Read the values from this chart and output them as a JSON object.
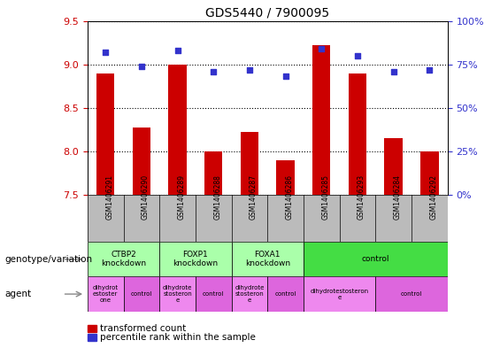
{
  "title": "GDS5440 / 7900095",
  "samples": [
    "GSM1406291",
    "GSM1406290",
    "GSM1406289",
    "GSM1406288",
    "GSM1406287",
    "GSM1406286",
    "GSM1406285",
    "GSM1406293",
    "GSM1406284",
    "GSM1406292"
  ],
  "transformed_counts": [
    8.9,
    8.27,
    9.0,
    8.0,
    8.22,
    7.9,
    9.22,
    8.9,
    8.15,
    8.0
  ],
  "percentile_ranks": [
    82,
    74,
    83,
    71,
    72,
    68,
    84,
    80,
    71,
    72
  ],
  "ylim_left": [
    7.5,
    9.5
  ],
  "ylim_right": [
    0,
    100
  ],
  "yticks_left": [
    7.5,
    8.0,
    8.5,
    9.0,
    9.5
  ],
  "yticks_right": [
    0,
    25,
    50,
    75,
    100
  ],
  "bar_color": "#cc0000",
  "dot_color": "#3333cc",
  "bar_bottom": 7.5,
  "bar_width": 0.5,
  "genotype_groups": [
    {
      "label": "CTBP2\nknockdown",
      "start": 0,
      "end": 2,
      "color": "#aaffaa"
    },
    {
      "label": "FOXP1\nknockdown",
      "start": 2,
      "end": 4,
      "color": "#aaffaa"
    },
    {
      "label": "FOXA1\nknockdown",
      "start": 4,
      "end": 6,
      "color": "#aaffaa"
    },
    {
      "label": "control",
      "start": 6,
      "end": 10,
      "color": "#44dd44"
    }
  ],
  "agent_groups": [
    {
      "label": "dihydrot\nestoster\none",
      "start": 0,
      "end": 1,
      "color": "#ee88ee"
    },
    {
      "label": "control",
      "start": 1,
      "end": 2,
      "color": "#dd66dd"
    },
    {
      "label": "dihydrote\nstosteron\ne",
      "start": 2,
      "end": 3,
      "color": "#ee88ee"
    },
    {
      "label": "control",
      "start": 3,
      "end": 4,
      "color": "#dd66dd"
    },
    {
      "label": "dihydrote\nstosteron\ne",
      "start": 4,
      "end": 5,
      "color": "#ee88ee"
    },
    {
      "label": "control",
      "start": 5,
      "end": 6,
      "color": "#dd66dd"
    },
    {
      "label": "dihydrotestosteron\ne",
      "start": 6,
      "end": 8,
      "color": "#ee88ee"
    },
    {
      "label": "control",
      "start": 8,
      "end": 10,
      "color": "#dd66dd"
    }
  ],
  "legend_items": [
    {
      "label": "transformed count",
      "color": "#cc0000"
    },
    {
      "label": "percentile rank within the sample",
      "color": "#3333cc"
    }
  ],
  "left_tick_color": "#cc0000",
  "right_tick_color": "#3333cc",
  "annotation_left": "genotype/variation",
  "annotation_agent": "agent",
  "sample_bg": "#bbbbbb",
  "plot_bg": "#ffffff"
}
